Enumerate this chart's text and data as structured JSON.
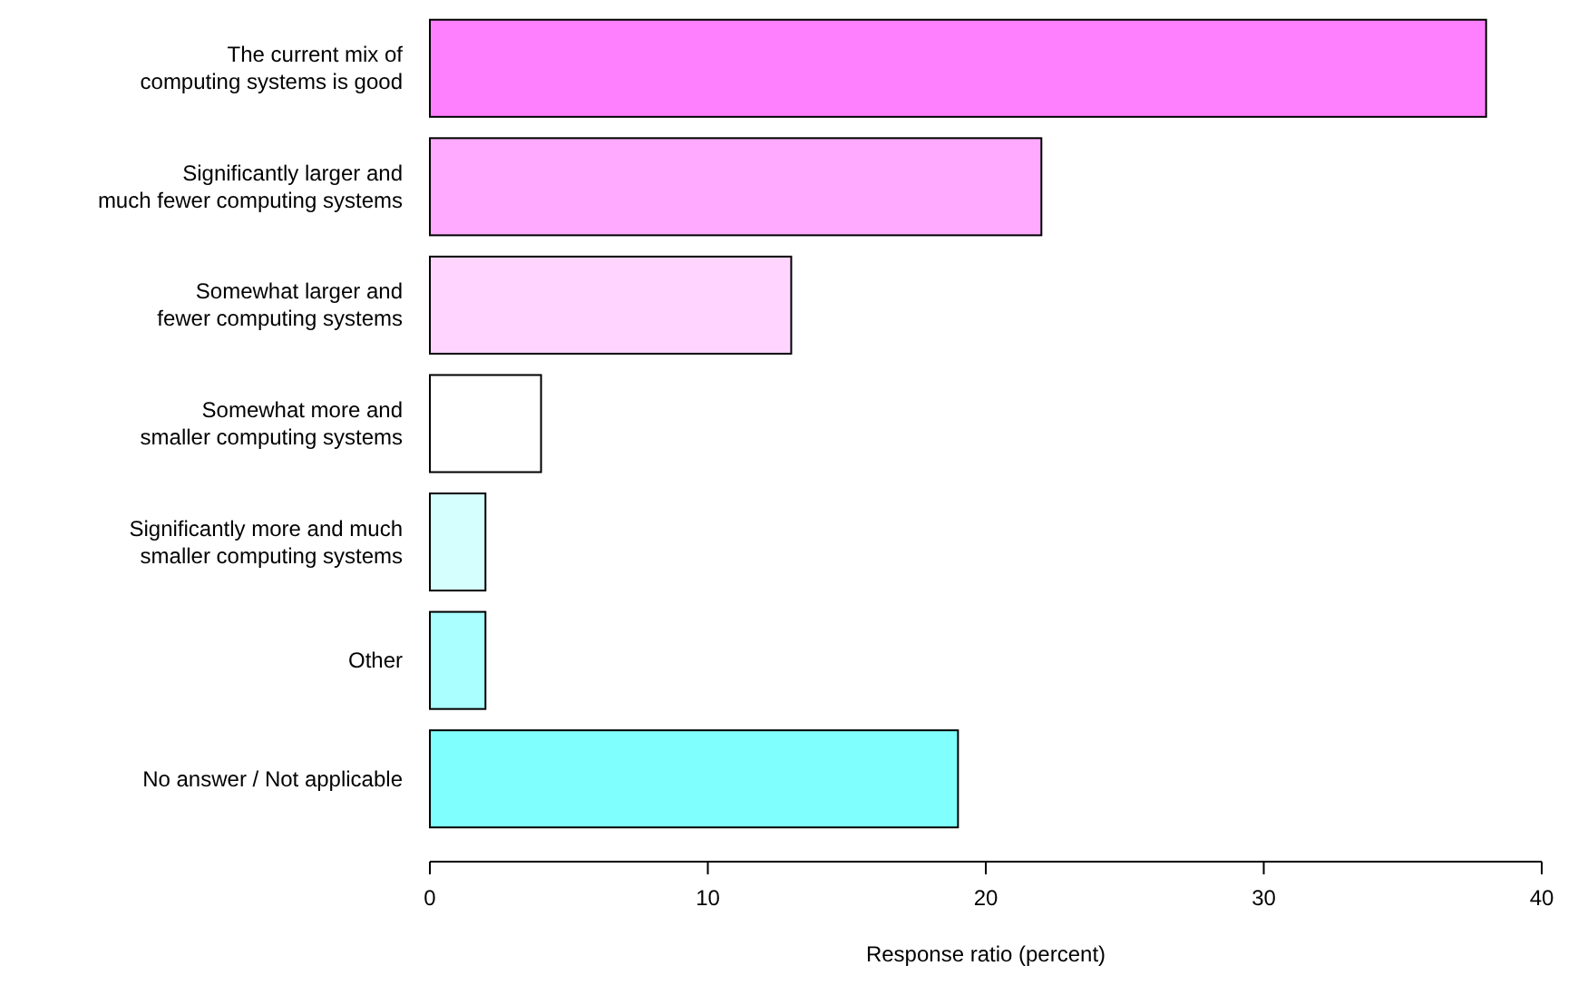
{
  "chart_data": {
    "type": "bar",
    "orientation": "horizontal",
    "xlabel": "Response ratio (percent)",
    "categories": [
      "The current mix of\ncomputing systems is good",
      "Significantly larger and\nmuch fewer computing systems",
      "Somewhat larger and\nfewer computing systems",
      "Somewhat more and\nsmaller computing systems",
      "Significantly more and much\nsmaller computing systems",
      "Other",
      "No answer / Not applicable"
    ],
    "values": [
      38,
      22,
      13,
      4,
      2,
      2,
      19
    ],
    "colors": [
      "#ff80ff",
      "#ffaaff",
      "#ffd5ff",
      "#ffffff",
      "#d5ffff",
      "#aaffff",
      "#80ffff"
    ],
    "xlim": [
      0,
      40
    ],
    "xticks": [
      0,
      10,
      20,
      30,
      40
    ],
    "grid": false
  }
}
